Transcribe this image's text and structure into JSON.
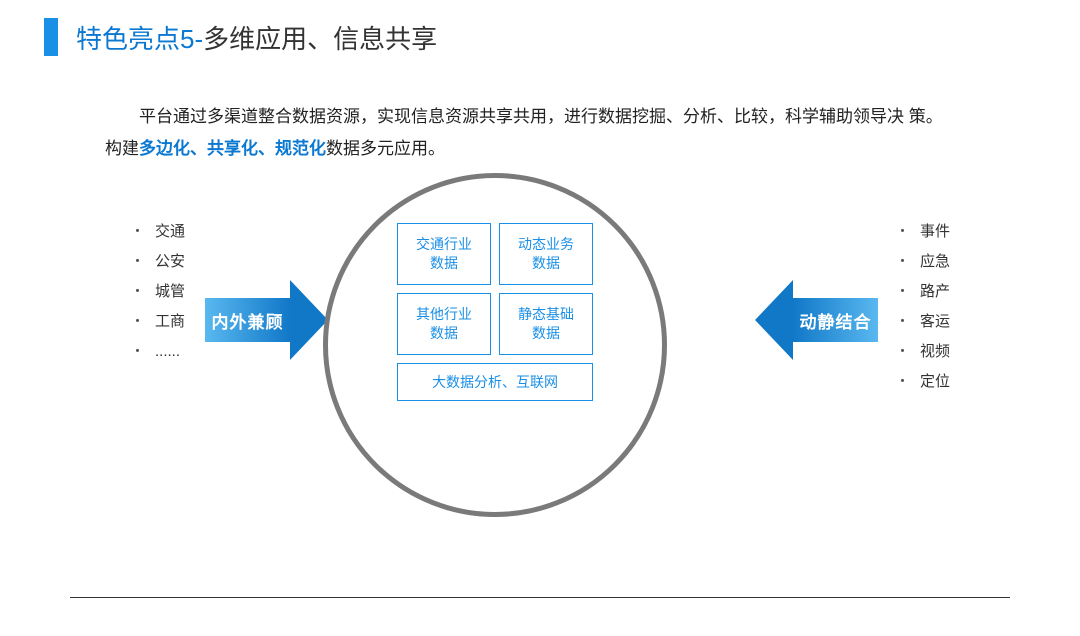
{
  "colors": {
    "accent_blue": "#1a8fe6",
    "title_blue": "#0b78d1",
    "arrow_grad_light": "#5ab8f0",
    "arrow_grad_dark": "#1178c8",
    "box_border": "#1a8fe6",
    "box_text": "#1a8fe6",
    "circle_border": "#7a7a7a",
    "highlight_text": "#0b78d1"
  },
  "title": {
    "prefix": "特色亮点5-",
    "main": "多维应用、信息共享"
  },
  "description": {
    "line1": "平台通过多渠道整合数据资源，实现信息资源共享共用，进行数据挖掘、分析、比较，科学辅助领导决 策。",
    "line2_pre": "构建",
    "line2_hl": "多边化、共享化、规范化",
    "line2_post": "数据多元应用。"
  },
  "left_list": [
    "交通",
    "公安",
    "城管",
    "工商",
    "......"
  ],
  "right_list": [
    "事件",
    "应急",
    "路产",
    "客运",
    "视频",
    "定位"
  ],
  "left_arrow_label": "内外兼顾",
  "right_arrow_label": "动静结合",
  "boxes": {
    "r1c1": "交通行业\n数据",
    "r1c2": "动态业务\n数据",
    "r2c1": "其他行业\n数据",
    "r2c2": "静态基础\n数据",
    "wide": "大数据分析、互联网"
  }
}
